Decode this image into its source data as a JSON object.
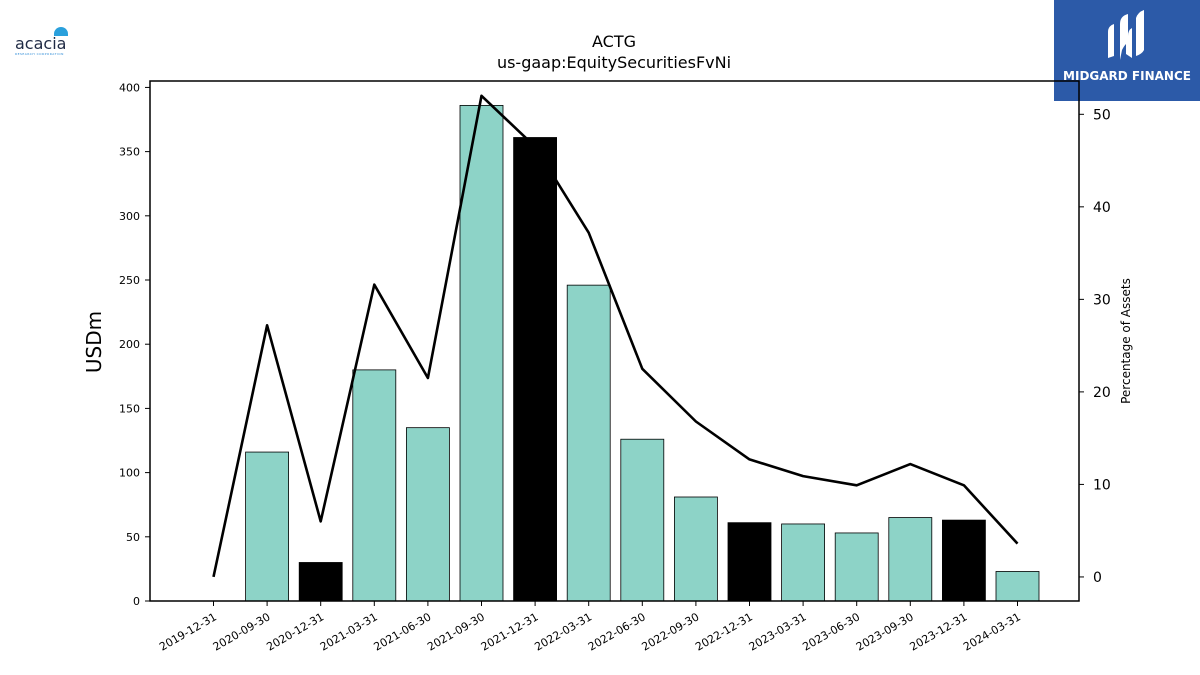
{
  "logos": {
    "left": {
      "word": "acacia",
      "sub": "RESEARCH CORPORATION",
      "color": "#1f2a44",
      "accent": "#2aa0dc"
    },
    "right": {
      "brand": "MIDGARD FINANCE",
      "background": "#2c5aa8"
    }
  },
  "chart_data": {
    "type": "bar",
    "title": "ACTG",
    "subtitle": "us-gaap:EquitySecuritiesFvNi",
    "ylabel": "USDm",
    "y2label": "Percentage of Assets",
    "categories": [
      "2019-12-31",
      "2020-09-30",
      "2020-12-31",
      "2021-03-31",
      "2021-06-30",
      "2021-09-30",
      "2021-12-31",
      "2022-03-31",
      "2022-06-30",
      "2022-09-30",
      "2022-12-31",
      "2023-03-31",
      "2023-06-30",
      "2023-09-30",
      "2023-12-31",
      "2024-03-31"
    ],
    "ylim": [
      0,
      405
    ],
    "yticks": [
      0,
      50,
      100,
      150,
      200,
      250,
      300,
      350,
      400
    ],
    "y2lim": [
      -2.6,
      53.6
    ],
    "y2ticks": [
      0,
      10,
      20,
      30,
      40,
      50
    ],
    "series": [
      {
        "type": "bar",
        "values": [
          0,
          116,
          30,
          180,
          135,
          386,
          361,
          246,
          126,
          81,
          61,
          60,
          53,
          65,
          63,
          23
        ],
        "highlight": [
          false,
          false,
          true,
          false,
          false,
          false,
          true,
          false,
          false,
          false,
          true,
          false,
          false,
          false,
          true,
          false
        ],
        "color": "#8dd3c7",
        "highlight_color": "#000000"
      },
      {
        "type": "line",
        "axis": "right",
        "values": [
          0.0,
          27.2,
          6.0,
          31.6,
          21.5,
          52.0,
          46.5,
          37.2,
          22.5,
          16.8,
          12.7,
          10.9,
          9.9,
          12.2,
          9.9,
          3.6
        ],
        "color": "#000000"
      }
    ],
    "grid": false,
    "legend": "none"
  }
}
